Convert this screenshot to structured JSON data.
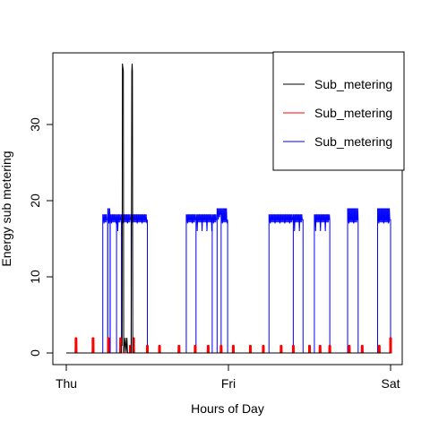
{
  "chart_data": {
    "type": "line",
    "title": "",
    "xlabel": "Hours of Day",
    "ylabel": "Energy sub metering",
    "x_ticks": [
      {
        "value": 0,
        "label": "Thu"
      },
      {
        "value": 1,
        "label": "Fri"
      },
      {
        "value": 2,
        "label": "Sat"
      }
    ],
    "xlim": [
      0,
      2
    ],
    "ylim": [
      0,
      38
    ],
    "y_ticks": [
      0,
      10,
      20,
      30
    ],
    "grid": false,
    "legend_position": "top-right",
    "series": [
      {
        "name": "Sub_metering",
        "color": "#000000",
        "segments": [
          [
            [
              0.0,
              0
            ],
            [
              0.339,
              0
            ],
            [
              0.341,
              1
            ],
            [
              0.344,
              1
            ],
            [
              0.346,
              38
            ],
            [
              0.352,
              37
            ],
            [
              0.354,
              0
            ],
            [
              0.355,
              2
            ],
            [
              0.357,
              0
            ],
            [
              0.36,
              1
            ],
            [
              0.364,
              2
            ],
            [
              0.366,
              1
            ],
            [
              0.369,
              0
            ],
            [
              0.371,
              1
            ],
            [
              0.374,
              2
            ],
            [
              0.376,
              1
            ],
            [
              0.378,
              0
            ],
            [
              0.38,
              0
            ],
            [
              0.4,
              0
            ],
            [
              0.404,
              37
            ],
            [
              0.406,
              38
            ],
            [
              0.408,
              37
            ],
            [
              0.41,
              0
            ],
            [
              2.0,
              0
            ]
          ]
        ]
      },
      {
        "name": "Sub_metering",
        "color": "#ff0000",
        "pulses": [
          {
            "x": 0.06,
            "y": 2
          },
          {
            "x": 0.165,
            "y": 2
          },
          {
            "x": 0.26,
            "y": 2
          },
          {
            "x": 0.335,
            "y": 2
          },
          {
            "x": 0.395,
            "y": 1
          },
          {
            "x": 0.415,
            "y": 2
          },
          {
            "x": 0.5,
            "y": 1
          },
          {
            "x": 0.575,
            "y": 1
          },
          {
            "x": 0.695,
            "y": 1
          },
          {
            "x": 0.795,
            "y": 1
          },
          {
            "x": 0.875,
            "y": 1
          },
          {
            "x": 0.955,
            "y": 1
          },
          {
            "x": 1.03,
            "y": 1
          },
          {
            "x": 1.135,
            "y": 1
          },
          {
            "x": 1.215,
            "y": 1
          },
          {
            "x": 1.325,
            "y": 1
          },
          {
            "x": 1.4,
            "y": 1
          },
          {
            "x": 1.5,
            "y": 1
          },
          {
            "x": 1.565,
            "y": 1
          },
          {
            "x": 1.625,
            "y": 1
          },
          {
            "x": 1.745,
            "y": 1
          },
          {
            "x": 1.825,
            "y": 1
          },
          {
            "x": 1.93,
            "y": 1
          },
          {
            "x": 2.0,
            "y": 2
          }
        ]
      },
      {
        "name": "Sub_metering",
        "color": "#0000ff",
        "blocks": [
          {
            "x0": 0.225,
            "x1": 0.255,
            "base": 17.5,
            "top": 18.2,
            "low": 17
          },
          {
            "x0": 0.256,
            "x1": 0.27,
            "base": 17.5,
            "top": 19,
            "low": 17
          },
          {
            "x0": 0.271,
            "x1": 0.31,
            "base": 17.5,
            "top": 18.2,
            "low": 17
          },
          {
            "x0": 0.31,
            "x1": 0.34,
            "base": 17.5,
            "top": 18.2,
            "low": 16
          },
          {
            "x0": 0.34,
            "x1": 0.4,
            "base": 17.5,
            "top": 18.2,
            "low": 17
          },
          {
            "x0": 0.4,
            "x1": 0.5,
            "base": 17.5,
            "top": 18.2,
            "low": 17
          },
          {
            "x0": 0.74,
            "x1": 0.8,
            "base": 17.5,
            "top": 18.2,
            "low": 17
          },
          {
            "x0": 0.8,
            "x1": 0.9,
            "base": 17.5,
            "top": 18.2,
            "low": 16
          },
          {
            "x0": 0.9,
            "x1": 0.93,
            "base": 17.5,
            "top": 18.2,
            "low": 17
          },
          {
            "x0": 0.93,
            "x1": 0.955,
            "base": 18.2,
            "top": 19,
            "low": 17.5
          },
          {
            "x0": 0.955,
            "x1": 0.995,
            "base": 17.5,
            "top": 19,
            "low": 17
          },
          {
            "x0": 1.25,
            "x1": 1.4,
            "base": 17.5,
            "top": 18.2,
            "low": 17
          },
          {
            "x0": 1.4,
            "x1": 1.46,
            "base": 17.5,
            "top": 18.2,
            "low": 16
          },
          {
            "x0": 1.53,
            "x1": 1.625,
            "base": 17.5,
            "top": 18.2,
            "low": 16
          },
          {
            "x0": 1.735,
            "x1": 1.8,
            "base": 17.5,
            "top": 19,
            "low": 17
          },
          {
            "x0": 1.92,
            "x1": 2.0,
            "base": 17.5,
            "top": 19,
            "low": 17
          }
        ]
      }
    ]
  }
}
